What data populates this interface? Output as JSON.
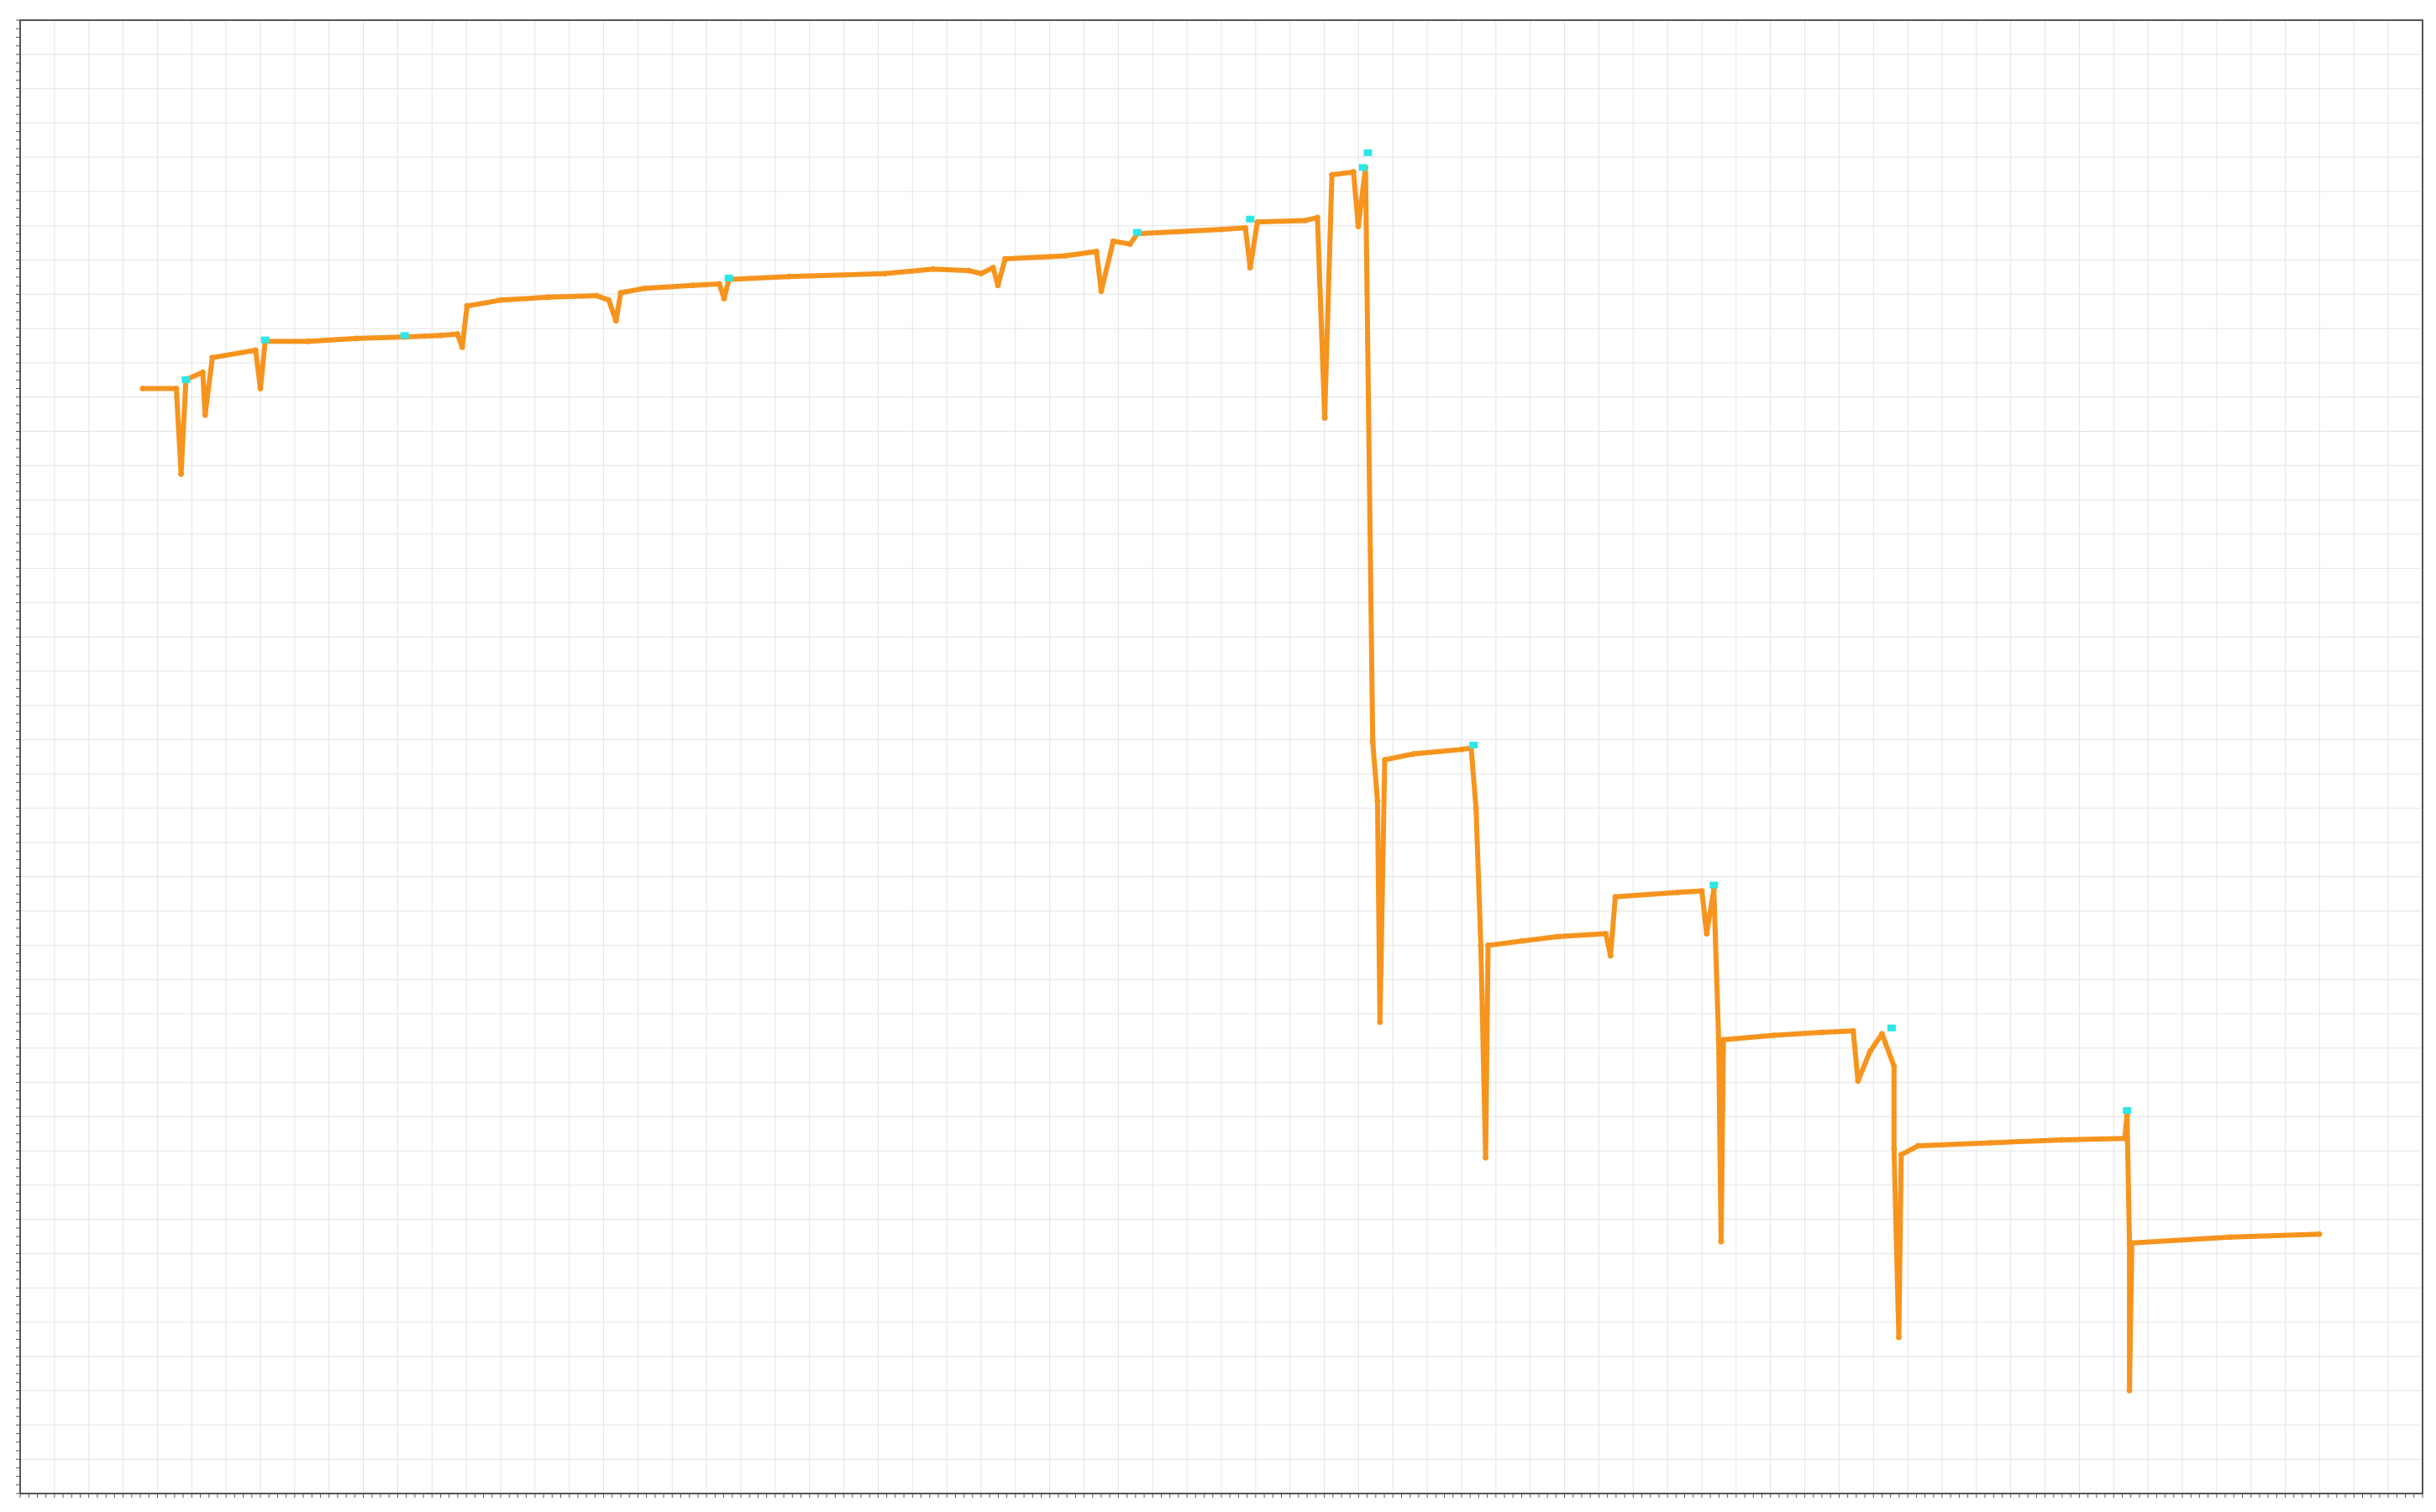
{
  "chart_data": {
    "type": "line",
    "title": "",
    "xlabel": "",
    "ylabel": "",
    "grid": true,
    "xlim": [
      0,
      100
    ],
    "ylim": [
      0,
      100
    ],
    "colors": {
      "series": "#f7941d",
      "highlight": "#2de6e6",
      "frame": "#555555",
      "grid": "#e4e4e4"
    },
    "series": [
      {
        "values": [
          [
            5.1,
            75.0
          ],
          [
            6.5,
            75.0
          ],
          [
            6.7,
            69.2
          ],
          [
            6.9,
            75.6
          ],
          [
            7.6,
            76.1
          ],
          [
            7.7,
            73.2
          ],
          [
            8.0,
            77.1
          ],
          [
            9.8,
            77.6
          ],
          [
            10.0,
            75.0
          ],
          [
            10.2,
            78.2
          ],
          [
            12.0,
            78.2
          ],
          [
            14.0,
            78.4
          ],
          [
            16.0,
            78.5
          ],
          [
            17.5,
            78.6
          ],
          [
            18.2,
            78.7
          ],
          [
            18.4,
            77.8
          ],
          [
            18.6,
            80.6
          ],
          [
            20.0,
            81.0
          ],
          [
            22.0,
            81.2
          ],
          [
            24.0,
            81.3
          ],
          [
            24.5,
            81.0
          ],
          [
            24.8,
            79.6
          ],
          [
            25.0,
            81.5
          ],
          [
            26.0,
            81.8
          ],
          [
            28.0,
            82.0
          ],
          [
            29.1,
            82.1
          ],
          [
            29.3,
            81.1
          ],
          [
            29.5,
            82.4
          ],
          [
            32.0,
            82.6
          ],
          [
            36.0,
            82.8
          ],
          [
            38.0,
            83.1
          ],
          [
            39.5,
            83.0
          ],
          [
            40.0,
            82.8
          ],
          [
            40.5,
            83.2
          ],
          [
            40.7,
            82.0
          ],
          [
            41.0,
            83.8
          ],
          [
            43.5,
            84.0
          ],
          [
            44.8,
            84.3
          ],
          [
            45.0,
            81.6
          ],
          [
            45.5,
            85.0
          ],
          [
            46.2,
            84.8
          ],
          [
            46.5,
            85.5
          ],
          [
            50.0,
            85.8
          ],
          [
            51.0,
            85.9
          ],
          [
            51.2,
            83.2
          ],
          [
            51.5,
            86.3
          ],
          [
            53.5,
            86.4
          ],
          [
            54.0,
            86.6
          ],
          [
            54.3,
            73.0
          ],
          [
            54.6,
            89.5
          ],
          [
            55.5,
            89.7
          ],
          [
            55.7,
            86.0
          ],
          [
            56.0,
            90.0
          ],
          [
            56.2,
            64.0
          ],
          [
            56.3,
            51.0
          ],
          [
            56.5,
            47.0
          ],
          [
            56.6,
            32.0
          ],
          [
            56.8,
            49.8
          ],
          [
            58.0,
            50.2
          ],
          [
            60.0,
            50.5
          ],
          [
            60.4,
            50.6
          ],
          [
            60.6,
            46.5
          ],
          [
            60.8,
            37.2
          ],
          [
            61.0,
            22.8
          ],
          [
            61.1,
            37.2
          ],
          [
            62.5,
            37.5
          ],
          [
            64.0,
            37.8
          ],
          [
            66.0,
            38.0
          ],
          [
            66.2,
            36.5
          ],
          [
            66.4,
            40.5
          ],
          [
            69.0,
            40.8
          ],
          [
            70.0,
            40.9
          ],
          [
            70.2,
            38.0
          ],
          [
            70.5,
            41.0
          ],
          [
            70.7,
            30.8
          ],
          [
            70.8,
            17.1
          ],
          [
            70.9,
            30.8
          ],
          [
            73.0,
            31.1
          ],
          [
            75.0,
            31.3
          ],
          [
            76.3,
            31.4
          ],
          [
            76.5,
            28.0
          ],
          [
            77.0,
            30.0
          ],
          [
            77.5,
            31.2
          ],
          [
            78.0,
            29.0
          ],
          [
            78.0,
            23.4
          ],
          [
            78.2,
            10.6
          ],
          [
            78.3,
            23.0
          ],
          [
            79.0,
            23.6
          ],
          [
            82.0,
            23.8
          ],
          [
            85.0,
            24.0
          ],
          [
            87.6,
            24.1
          ],
          [
            87.7,
            25.7
          ],
          [
            87.8,
            17.0
          ],
          [
            87.8,
            7.0
          ],
          [
            87.9,
            17.0
          ],
          [
            92.0,
            17.4
          ],
          [
            95.7,
            17.6
          ]
        ],
        "highlights": [
          [
            6.9,
            75.6
          ],
          [
            10.2,
            78.3
          ],
          [
            16.0,
            78.6
          ],
          [
            29.5,
            82.5
          ],
          [
            46.5,
            85.6
          ],
          [
            51.2,
            86.5
          ],
          [
            55.9,
            90.0
          ],
          [
            56.1,
            91.0
          ],
          [
            60.5,
            50.8
          ],
          [
            70.5,
            41.3
          ],
          [
            77.9,
            31.6
          ],
          [
            87.7,
            26.0
          ]
        ]
      }
    ]
  }
}
